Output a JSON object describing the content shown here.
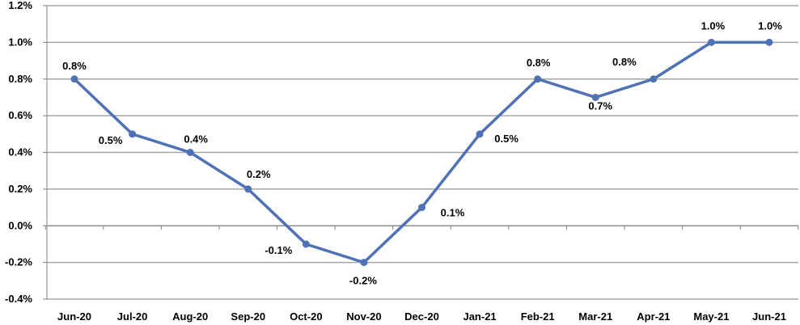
{
  "chart_data": {
    "type": "line",
    "title": "",
    "xlabel": "",
    "ylabel": "",
    "categories": [
      "Jun-20",
      "Jul-20",
      "Aug-20",
      "Sep-20",
      "Oct-20",
      "Nov-20",
      "Dec-20",
      "Jan-21",
      "Feb-21",
      "Mar-21",
      "Apr-21",
      "May-21",
      "Jun-21"
    ],
    "series": [
      {
        "values": [
          0.8,
          0.5,
          0.4,
          0.2,
          -0.1,
          -0.2,
          0.1,
          0.5,
          0.8,
          0.7,
          0.8,
          1.0,
          1.0
        ],
        "labels": [
          "0.8%",
          "0.5%",
          "0.4%",
          "0.2%",
          "-0.1%",
          "-0.2%",
          "0.1%",
          "0.5%",
          "0.8%",
          "0.7%",
          "0.8%",
          "1.0%",
          "1.0%"
        ],
        "color": "#4F72B7"
      }
    ],
    "ylim": [
      -0.4,
      1.2
    ],
    "yticks": [
      1.2,
      1.0,
      0.8,
      0.6,
      0.4,
      0.2,
      0.0,
      -0.2,
      -0.4
    ],
    "ytick_labels": [
      "1.2%",
      "1.0%",
      "0.8%",
      "0.6%",
      "0.4%",
      "0.2%",
      "0.0%",
      "-0.2%",
      "-0.4%"
    ],
    "grid": true,
    "gridline_color": "#A6A6A6",
    "legend": "none"
  }
}
